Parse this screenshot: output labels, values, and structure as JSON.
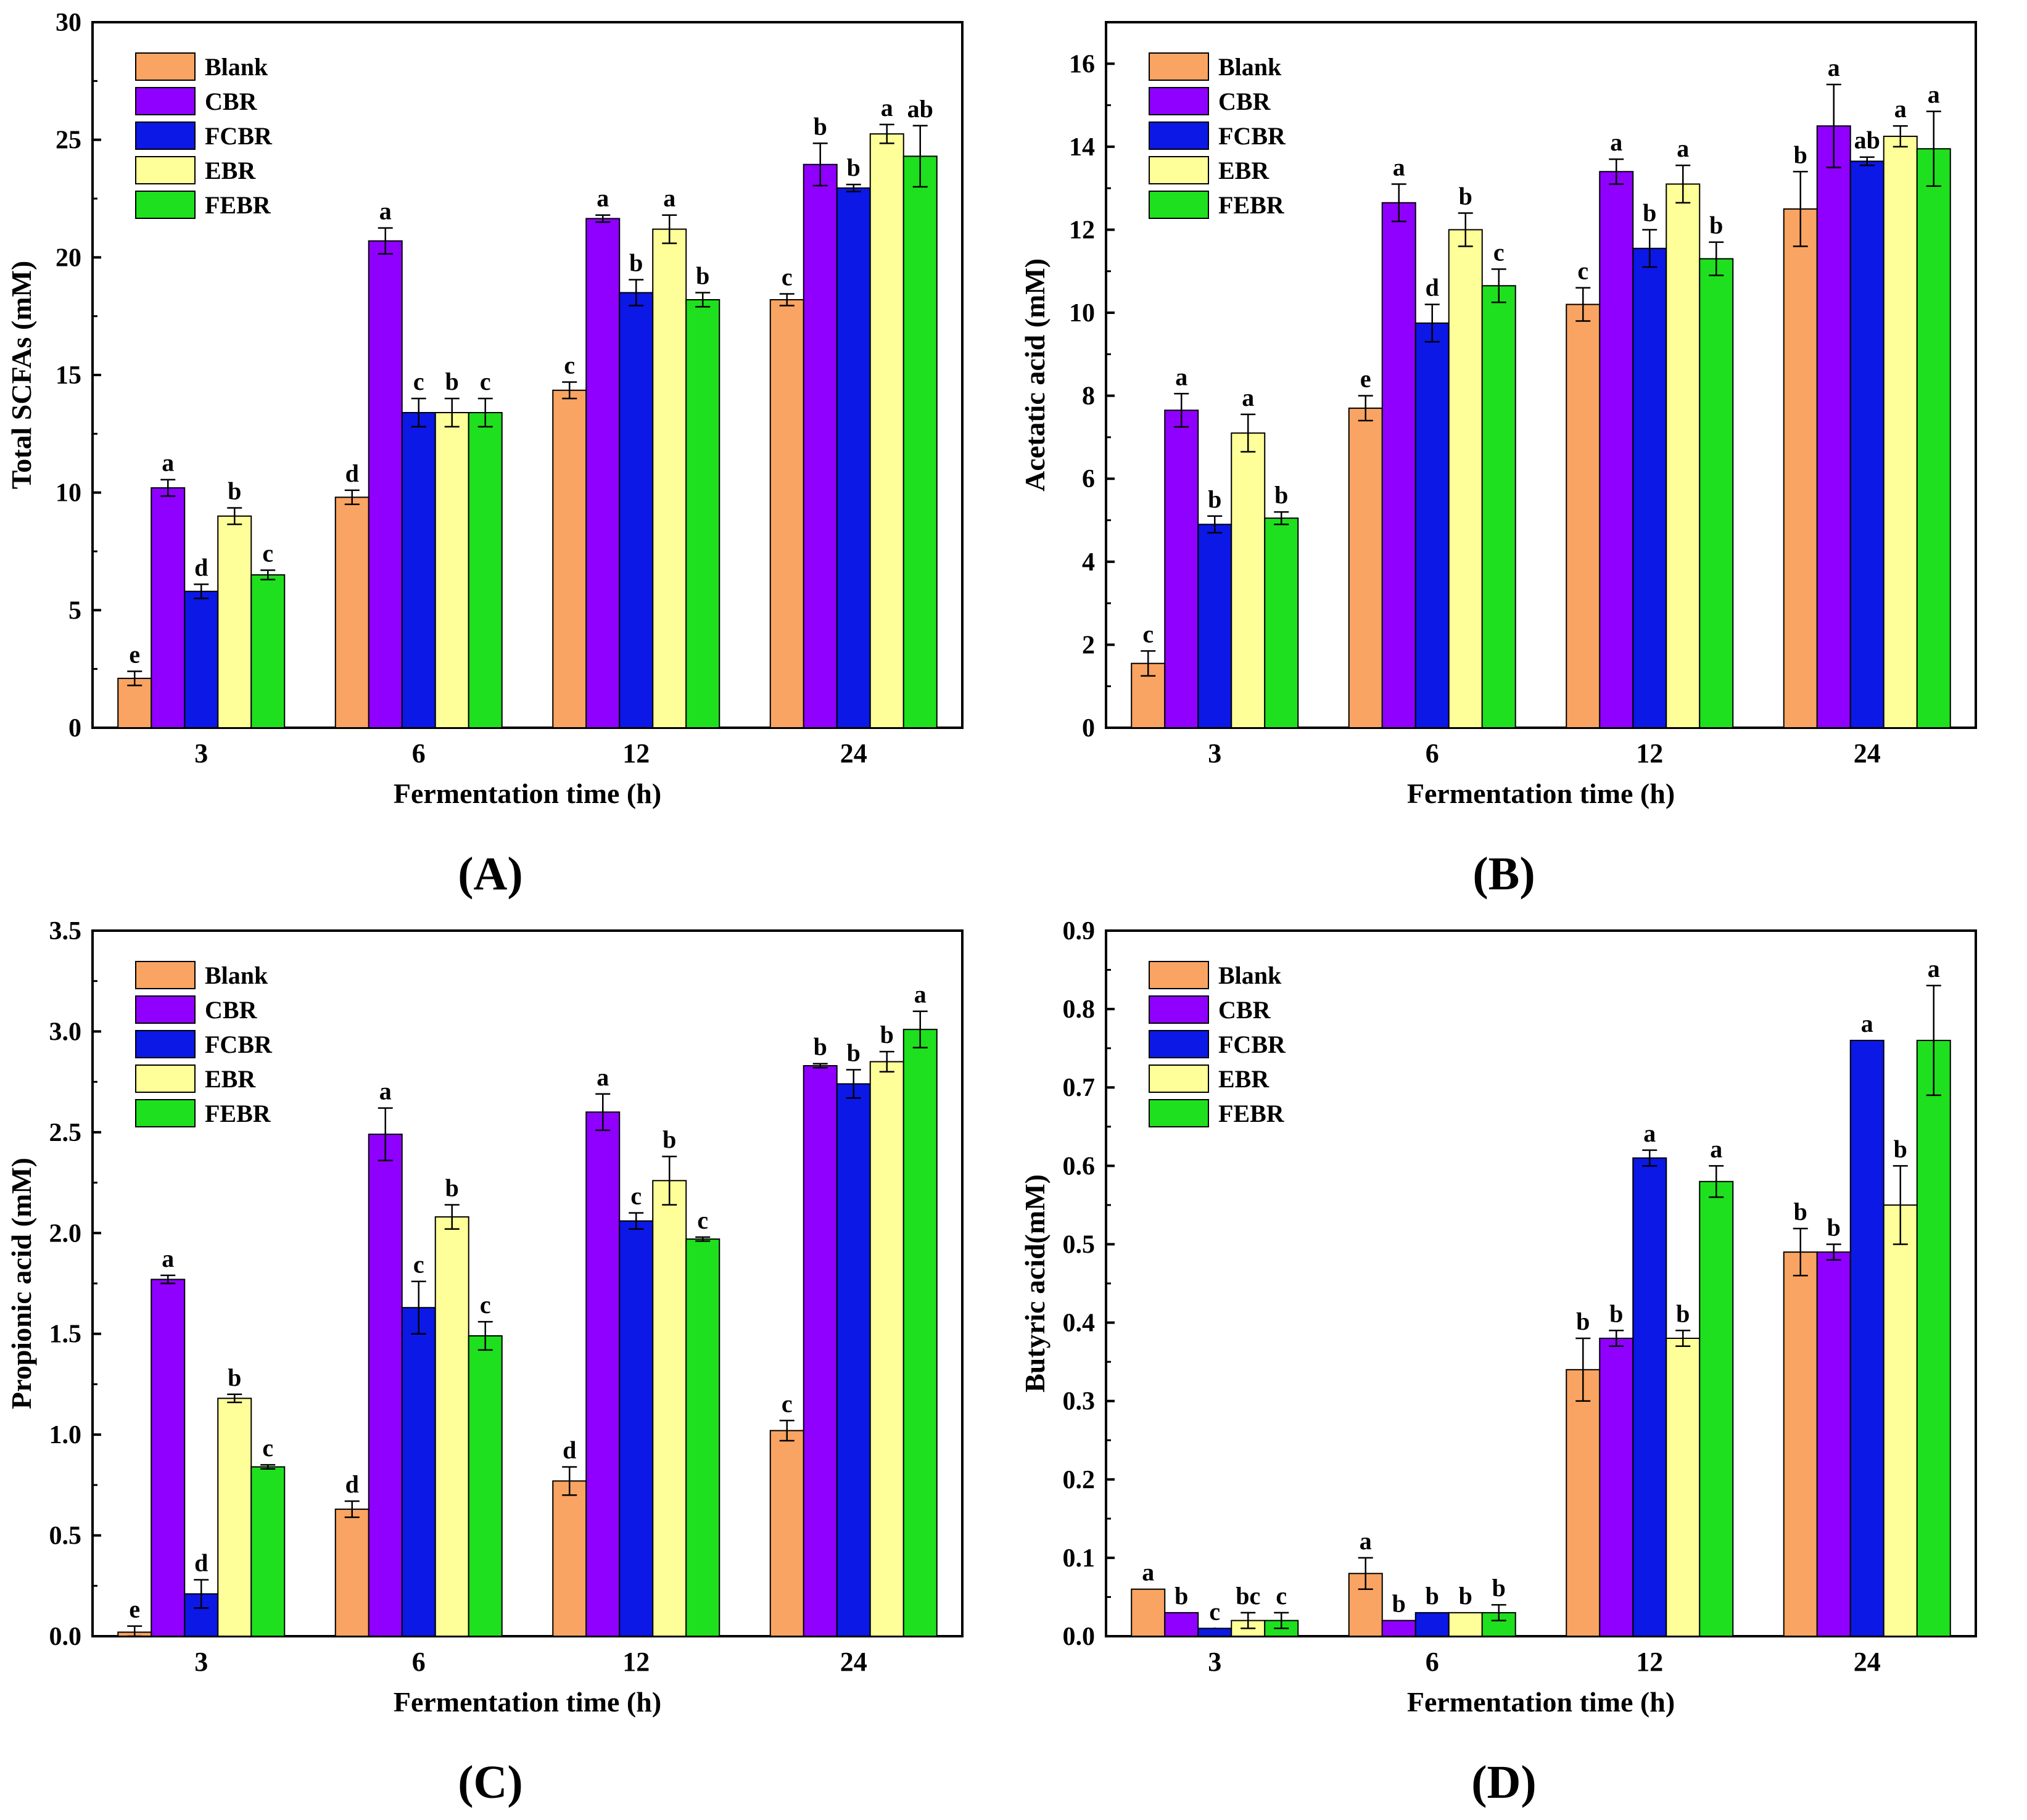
{
  "colors": {
    "Blank": "#F9A462",
    "CBR": "#8F00FF",
    "FCBR": "#0B18E6",
    "EBR": "#FFFF99",
    "FEBR": "#1EE01E"
  },
  "chart_data": [
    {
      "type": "bar",
      "panel_label": "(A)",
      "title": "",
      "xlabel": "Fermentation time (h)",
      "ylabel": "Total SCFAs (mM)",
      "categories": [
        "3",
        "6",
        "12",
        "24"
      ],
      "ylim": [
        0,
        30
      ],
      "yticks": [
        0,
        5,
        10,
        15,
        20,
        25,
        30
      ],
      "ytick_labels": [
        "0",
        "5",
        "10",
        "15",
        "20",
        "25",
        "30"
      ],
      "legend": "top-left",
      "series": [
        {
          "name": "Blank",
          "values": [
            2.1,
            9.8,
            14.35,
            18.2
          ],
          "errors": [
            0.3,
            0.3,
            0.35,
            0.25
          ],
          "letters": [
            "e",
            "d",
            "c",
            "c"
          ]
        },
        {
          "name": "CBR",
          "values": [
            10.2,
            20.7,
            21.65,
            23.95
          ],
          "errors": [
            0.35,
            0.55,
            0.15,
            0.9
          ],
          "letters": [
            "a",
            "a",
            "a",
            "b"
          ]
        },
        {
          "name": "FCBR",
          "values": [
            5.8,
            13.4,
            18.5,
            22.95
          ],
          "errors": [
            0.3,
            0.6,
            0.55,
            0.15
          ],
          "letters": [
            "d",
            "c",
            "b",
            "b"
          ]
        },
        {
          "name": "EBR",
          "values": [
            9.0,
            13.4,
            21.2,
            25.25
          ],
          "errors": [
            0.35,
            0.6,
            0.6,
            0.4
          ],
          "letters": [
            "b",
            "b",
            "a",
            "a"
          ]
        },
        {
          "name": "FEBR",
          "values": [
            6.5,
            13.4,
            18.2,
            24.3
          ],
          "errors": [
            0.2,
            0.6,
            0.3,
            1.3
          ],
          "letters": [
            "c",
            "c",
            "b",
            "ab"
          ]
        }
      ]
    },
    {
      "type": "bar",
      "panel_label": "(B)",
      "title": "",
      "xlabel": "Fermentation time (h)",
      "ylabel": "Acetatic acid (mM)",
      "categories": [
        "3",
        "6",
        "12",
        "24"
      ],
      "ylim": [
        0,
        17
      ],
      "yticks": [
        0,
        2,
        4,
        6,
        8,
        10,
        12,
        14,
        16
      ],
      "ytick_labels": [
        "0",
        "2",
        "4",
        "6",
        "8",
        "10",
        "12",
        "14",
        "16"
      ],
      "legend": "top-left",
      "series": [
        {
          "name": "Blank",
          "values": [
            1.55,
            7.7,
            10.2,
            12.5
          ],
          "errors": [
            0.3,
            0.3,
            0.4,
            0.9
          ],
          "letters": [
            "c",
            "e",
            "c",
            "b"
          ]
        },
        {
          "name": "CBR",
          "values": [
            7.65,
            12.65,
            13.4,
            14.5
          ],
          "errors": [
            0.4,
            0.45,
            0.3,
            1.0
          ],
          "letters": [
            "a",
            "a",
            "a",
            "a"
          ]
        },
        {
          "name": "FCBR",
          "values": [
            4.9,
            9.75,
            11.55,
            13.65
          ],
          "errors": [
            0.2,
            0.45,
            0.45,
            0.1
          ],
          "letters": [
            "b",
            "d",
            "b",
            "ab"
          ]
        },
        {
          "name": "EBR",
          "values": [
            7.1,
            12.0,
            13.1,
            14.25
          ],
          "errors": [
            0.45,
            0.4,
            0.45,
            0.25
          ],
          "letters": [
            "a",
            "b",
            "a",
            "a"
          ]
        },
        {
          "name": "FEBR",
          "values": [
            5.05,
            10.65,
            11.3,
            13.95
          ],
          "errors": [
            0.15,
            0.4,
            0.4,
            0.9
          ],
          "letters": [
            "b",
            "c",
            "b",
            "a"
          ]
        }
      ]
    },
    {
      "type": "bar",
      "panel_label": "(C)",
      "title": "",
      "xlabel": "Fermentation time (h)",
      "ylabel": "Propionic acid (mM)",
      "categories": [
        "3",
        "6",
        "12",
        "24"
      ],
      "ylim": [
        0,
        3.5
      ],
      "yticks": [
        0,
        0.5,
        1.0,
        1.5,
        2.0,
        2.5,
        3.0,
        3.5
      ],
      "ytick_labels": [
        "0.0",
        "0.5",
        "1.0",
        "1.5",
        "2.0",
        "2.5",
        "3.0",
        "3.5"
      ],
      "legend": "top-left",
      "series": [
        {
          "name": "Blank",
          "values": [
            0.02,
            0.63,
            0.77,
            1.02
          ],
          "errors": [
            0.03,
            0.04,
            0.07,
            0.05
          ],
          "letters": [
            "e",
            "d",
            "d",
            "c"
          ]
        },
        {
          "name": "CBR",
          "values": [
            1.77,
            2.49,
            2.6,
            2.83
          ],
          "errors": [
            0.02,
            0.13,
            0.09,
            0.01
          ],
          "letters": [
            "a",
            "a",
            "a",
            "b"
          ]
        },
        {
          "name": "FCBR",
          "values": [
            0.21,
            1.63,
            2.06,
            2.74
          ],
          "errors": [
            0.07,
            0.13,
            0.04,
            0.07
          ],
          "letters": [
            "d",
            "c",
            "c",
            "b"
          ]
        },
        {
          "name": "EBR",
          "values": [
            1.18,
            2.08,
            2.26,
            2.85
          ],
          "errors": [
            0.02,
            0.06,
            0.12,
            0.05
          ],
          "letters": [
            "b",
            "b",
            "b",
            "b"
          ]
        },
        {
          "name": "FEBR",
          "values": [
            0.84,
            1.49,
            1.97,
            3.01
          ],
          "errors": [
            0.01,
            0.07,
            0.01,
            0.09
          ],
          "letters": [
            "c",
            "c",
            "c",
            "a"
          ]
        }
      ]
    },
    {
      "type": "bar",
      "panel_label": "(D)",
      "title": "",
      "xlabel": "Fermentation time (h)",
      "ylabel": "Butyric acid(mM)",
      "categories": [
        "3",
        "6",
        "12",
        "24"
      ],
      "ylim": [
        0,
        0.9
      ],
      "yticks": [
        0,
        0.1,
        0.2,
        0.3,
        0.4,
        0.5,
        0.6,
        0.7,
        0.8,
        0.9
      ],
      "ytick_labels": [
        "0.0",
        "0.1",
        "0.2",
        "0.3",
        "0.4",
        "0.5",
        "0.6",
        "0.7",
        "0.8",
        "0.9"
      ],
      "legend": "top-left",
      "series": [
        {
          "name": "Blank",
          "values": [
            0.06,
            0.08,
            0.34,
            0.49
          ],
          "errors": [
            0.0,
            0.02,
            0.04,
            0.03
          ],
          "letters": [
            "a",
            "a",
            "b",
            "b"
          ]
        },
        {
          "name": "CBR",
          "values": [
            0.03,
            0.02,
            0.38,
            0.49
          ],
          "errors": [
            0.0,
            0.0,
            0.01,
            0.01
          ],
          "letters": [
            "b",
            "b",
            "b",
            "b"
          ]
        },
        {
          "name": "FCBR",
          "values": [
            0.01,
            0.03,
            0.61,
            0.76
          ],
          "errors": [
            0.0,
            0.0,
            0.01,
            0.0
          ],
          "letters": [
            "c",
            "b",
            "a",
            "a"
          ]
        },
        {
          "name": "EBR",
          "values": [
            0.02,
            0.03,
            0.38,
            0.55
          ],
          "errors": [
            0.01,
            0.0,
            0.01,
            0.05
          ],
          "letters": [
            "bc",
            "b",
            "b",
            "b"
          ]
        },
        {
          "name": "FEBR",
          "values": [
            0.02,
            0.03,
            0.58,
            0.76
          ],
          "errors": [
            0.01,
            0.01,
            0.02,
            0.07
          ],
          "letters": [
            "c",
            "b",
            "a",
            "a"
          ]
        }
      ]
    }
  ]
}
